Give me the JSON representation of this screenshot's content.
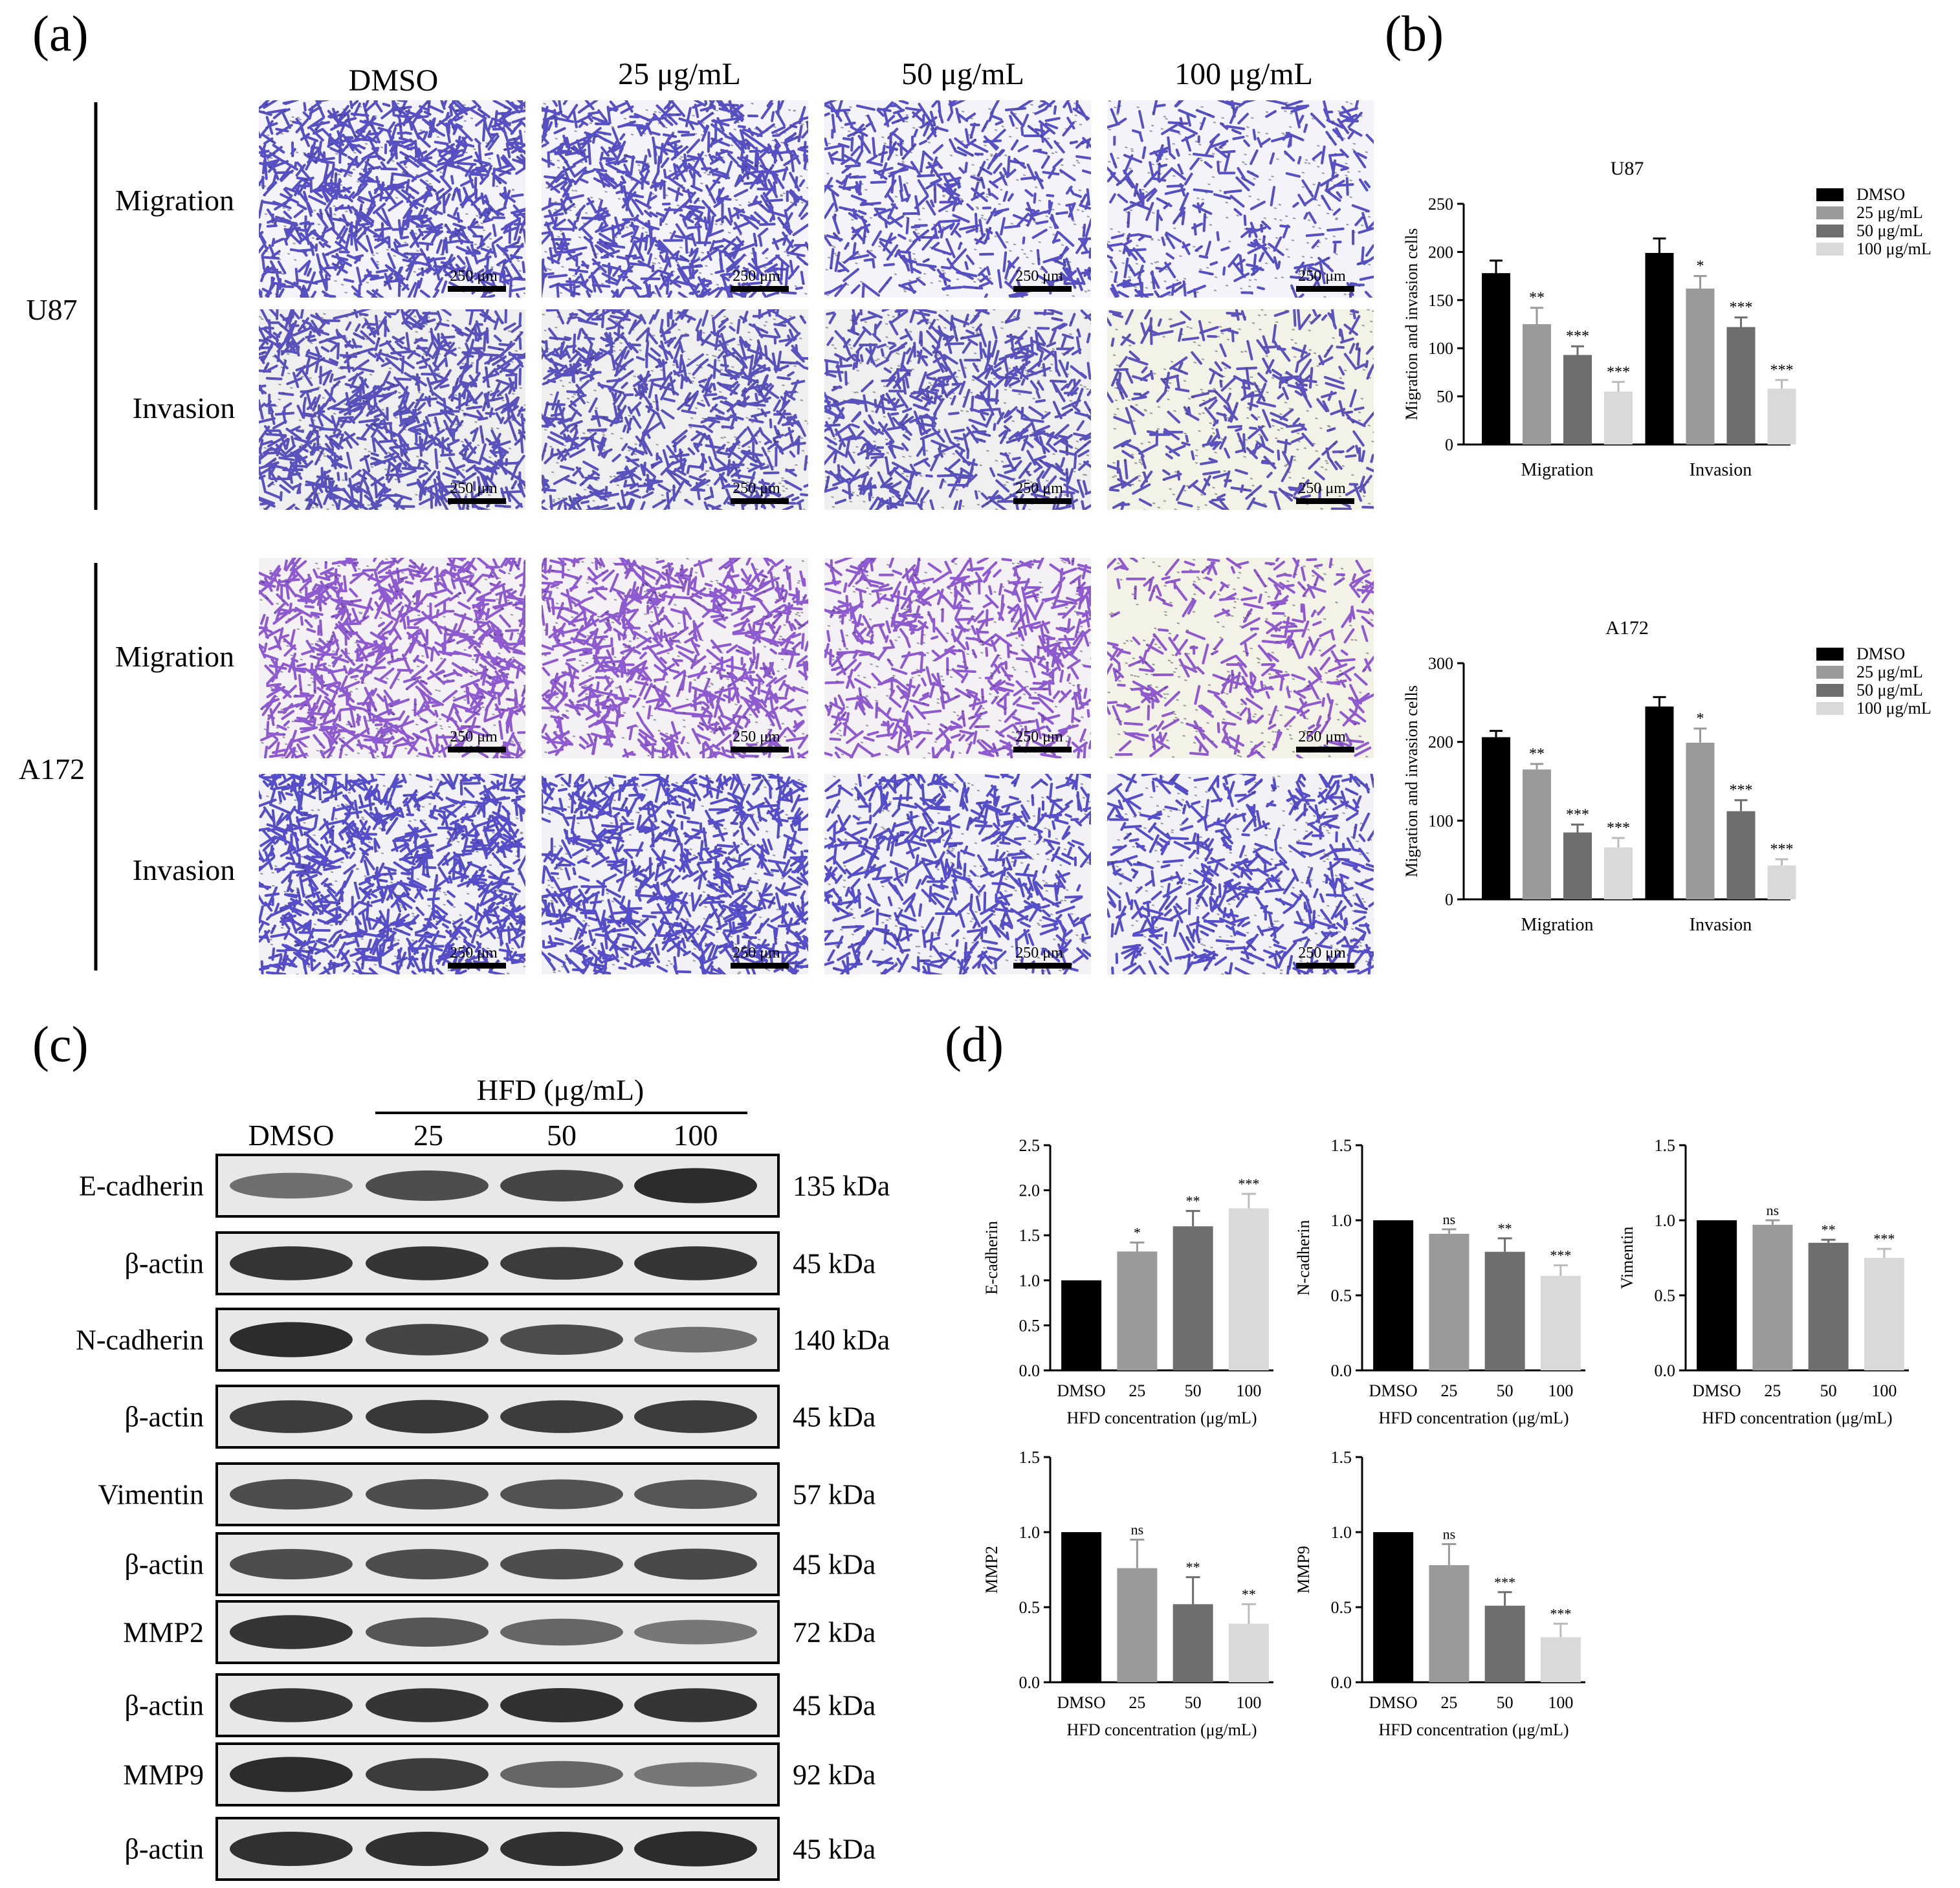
{
  "panel_labels": {
    "a": "(a)",
    "b": "(b)",
    "c": "(c)",
    "d": "(d)"
  },
  "micrographs": {
    "column_headers": [
      "DMSO",
      "25 μg/mL",
      "50 μg/mL",
      "100 μg/mL"
    ],
    "cell_lines": [
      "U87",
      "A172"
    ],
    "row_labels": [
      "Migration",
      "Invasion"
    ],
    "scale_bar_label": "250 μm",
    "stain_colors": {
      "U87-Migration": "#3a33b8",
      "U87-Invasion": "#3f36b3",
      "A172-Migration": "#7b3fc8",
      "A172-Invasion": "#3a31c0"
    },
    "stain_density": [
      [
        0.95,
        0.8,
        0.5,
        0.35
      ],
      [
        0.9,
        0.75,
        0.65,
        0.35
      ],
      [
        0.85,
        0.75,
        0.6,
        0.35
      ],
      [
        0.95,
        0.85,
        0.6,
        0.55
      ]
    ]
  },
  "western_blot": {
    "group_header": "HFD (μg/mL)",
    "lane_labels": [
      "DMSO",
      "25",
      "50",
      "100"
    ],
    "rows": [
      {
        "protein": "E-cadherin",
        "size": "135 kDa",
        "intensity": [
          0.55,
          0.75,
          0.8,
          0.95
        ]
      },
      {
        "protein": "β-actin",
        "size": "45 kDa",
        "intensity": [
          0.9,
          0.9,
          0.85,
          0.9
        ]
      },
      {
        "protein": "N-cadherin",
        "size": "140 kDa",
        "intensity": [
          0.95,
          0.8,
          0.75,
          0.55
        ]
      },
      {
        "protein": "β-actin",
        "size": "45 kDa",
        "intensity": [
          0.85,
          0.88,
          0.85,
          0.85
        ]
      },
      {
        "protein": "Vimentin",
        "size": "57 kDa",
        "intensity": [
          0.75,
          0.75,
          0.72,
          0.7
        ]
      },
      {
        "protein": "β-actin",
        "size": "45 kDa",
        "intensity": [
          0.75,
          0.75,
          0.75,
          0.78
        ]
      },
      {
        "protein": "MMP2",
        "size": "72 kDa",
        "intensity": [
          0.9,
          0.7,
          0.6,
          0.5
        ]
      },
      {
        "protein": "β-actin",
        "size": "45 kDa",
        "intensity": [
          0.9,
          0.9,
          0.92,
          0.9
        ]
      },
      {
        "protein": "MMP9",
        "size": "92 kDa",
        "intensity": [
          0.95,
          0.85,
          0.6,
          0.5
        ]
      },
      {
        "protein": "β-actin",
        "size": "45 kDa",
        "intensity": [
          0.92,
          0.92,
          0.92,
          0.95
        ]
      }
    ]
  },
  "chart_data": [
    {
      "id": "b-U87",
      "type": "bar",
      "title": "U87",
      "ylabel": "Migration and invasion cells",
      "xlabel": "",
      "categories": [
        "Migration",
        "Invasion"
      ],
      "ylim": [
        0,
        250
      ],
      "yticks": [
        0,
        50,
        100,
        150,
        200,
        250
      ],
      "series": [
        {
          "name": "DMSO",
          "color": "#000000",
          "values": [
            178,
            199
          ],
          "errors": [
            13,
            15
          ],
          "sig": [
            "",
            ""
          ]
        },
        {
          "name": "25  μg/mL",
          "color": "#9a9a9a",
          "values": [
            125,
            162
          ],
          "errors": [
            17,
            13
          ],
          "sig": [
            "**",
            "*"
          ]
        },
        {
          "name": "50  μg/mL",
          "color": "#6e6e6e",
          "values": [
            93,
            122
          ],
          "errors": [
            9,
            10
          ],
          "sig": [
            "***",
            "***"
          ]
        },
        {
          "name": "100 μg/mL",
          "color": "#d9d9d9",
          "values": [
            55,
            58
          ],
          "errors": [
            10,
            9
          ],
          "sig": [
            "***",
            "***"
          ]
        }
      ]
    },
    {
      "id": "b-A172",
      "type": "bar",
      "title": "A172",
      "ylabel": "Migration and invasion cells",
      "xlabel": "",
      "categories": [
        "Migration",
        "Invasion"
      ],
      "ylim": [
        0,
        300
      ],
      "yticks": [
        0,
        100,
        200,
        300
      ],
      "series": [
        {
          "name": "DMSO",
          "color": "#000000",
          "values": [
            206,
            245
          ],
          "errors": [
            8,
            12
          ],
          "sig": [
            "",
            ""
          ]
        },
        {
          "name": "25  μg/mL",
          "color": "#9a9a9a",
          "values": [
            165,
            199
          ],
          "errors": [
            7,
            18
          ],
          "sig": [
            "**",
            "*"
          ]
        },
        {
          "name": "50  μg/mL",
          "color": "#6e6e6e",
          "values": [
            85,
            112
          ],
          "errors": [
            10,
            14
          ],
          "sig": [
            "***",
            "***"
          ]
        },
        {
          "name": "100 μg/mL",
          "color": "#d9d9d9",
          "values": [
            66,
            43
          ],
          "errors": [
            12,
            8
          ],
          "sig": [
            "***",
            "***"
          ]
        }
      ]
    },
    {
      "id": "d-Ecad",
      "type": "bar",
      "ylabel": "E-cadherin",
      "xlabel": "HFD concentration (μg/mL)",
      "categories": [
        "DMSO",
        "25",
        "50",
        "100"
      ],
      "values": [
        1.0,
        1.32,
        1.6,
        1.8
      ],
      "errors": [
        0,
        0.1,
        0.17,
        0.16
      ],
      "sig": [
        "",
        "*",
        "**",
        "***"
      ],
      "colors": [
        "#000000",
        "#9a9a9a",
        "#6e6e6e",
        "#d9d9d9"
      ],
      "ylim": [
        0,
        2.5
      ],
      "yticks": [
        "0.0",
        "0.5",
        "1.0",
        "1.5",
        "2.0",
        "2.5"
      ]
    },
    {
      "id": "d-Ncad",
      "type": "bar",
      "ylabel": "N-cadherin",
      "xlabel": "HFD concentration (μg/mL)",
      "categories": [
        "DMSO",
        "25",
        "50",
        "100"
      ],
      "values": [
        1.0,
        0.91,
        0.79,
        0.63
      ],
      "errors": [
        0,
        0.03,
        0.09,
        0.07
      ],
      "sig": [
        "",
        "ns",
        "**",
        "***"
      ],
      "colors": [
        "#000000",
        "#9a9a9a",
        "#6e6e6e",
        "#d9d9d9"
      ],
      "ylim": [
        0,
        1.5
      ],
      "yticks": [
        "0.0",
        "0.5",
        "1.0",
        "1.5"
      ]
    },
    {
      "id": "d-Vim",
      "type": "bar",
      "ylabel": "Vimentin",
      "xlabel": "HFD concentration (μg/mL)",
      "categories": [
        "DMSO",
        "25",
        "50",
        "100"
      ],
      "values": [
        1.0,
        0.97,
        0.85,
        0.75
      ],
      "errors": [
        0,
        0.03,
        0.02,
        0.06
      ],
      "sig": [
        "",
        "ns",
        "**",
        "***"
      ],
      "colors": [
        "#000000",
        "#9a9a9a",
        "#6e6e6e",
        "#d9d9d9"
      ],
      "ylim": [
        0,
        1.5
      ],
      "yticks": [
        "0.0",
        "0.5",
        "1.0",
        "1.5"
      ]
    },
    {
      "id": "d-MMP2",
      "type": "bar",
      "ylabel": "MMP2",
      "xlabel": "HFD concentration (μg/mL)",
      "categories": [
        "DMSO",
        "25",
        "50",
        "100"
      ],
      "values": [
        1.0,
        0.76,
        0.52,
        0.39
      ],
      "errors": [
        0,
        0.19,
        0.18,
        0.13
      ],
      "sig": [
        "",
        "ns",
        "**",
        "**"
      ],
      "colors": [
        "#000000",
        "#9a9a9a",
        "#6e6e6e",
        "#d9d9d9"
      ],
      "ylim": [
        0,
        1.5
      ],
      "yticks": [
        "0.0",
        "0.5",
        "1.0",
        "1.5"
      ]
    },
    {
      "id": "d-MMP9",
      "type": "bar",
      "ylabel": "MMP9",
      "xlabel": "HFD concentration (μg/mL)",
      "categories": [
        "DMSO",
        "25",
        "50",
        "100"
      ],
      "values": [
        1.0,
        0.78,
        0.51,
        0.3
      ],
      "errors": [
        0,
        0.14,
        0.09,
        0.09
      ],
      "sig": [
        "",
        "ns",
        "***",
        "***"
      ],
      "colors": [
        "#000000",
        "#9a9a9a",
        "#6e6e6e",
        "#d9d9d9"
      ],
      "ylim": [
        0,
        1.5
      ],
      "yticks": [
        "0.0",
        "0.5",
        "1.0",
        "1.5"
      ]
    }
  ]
}
